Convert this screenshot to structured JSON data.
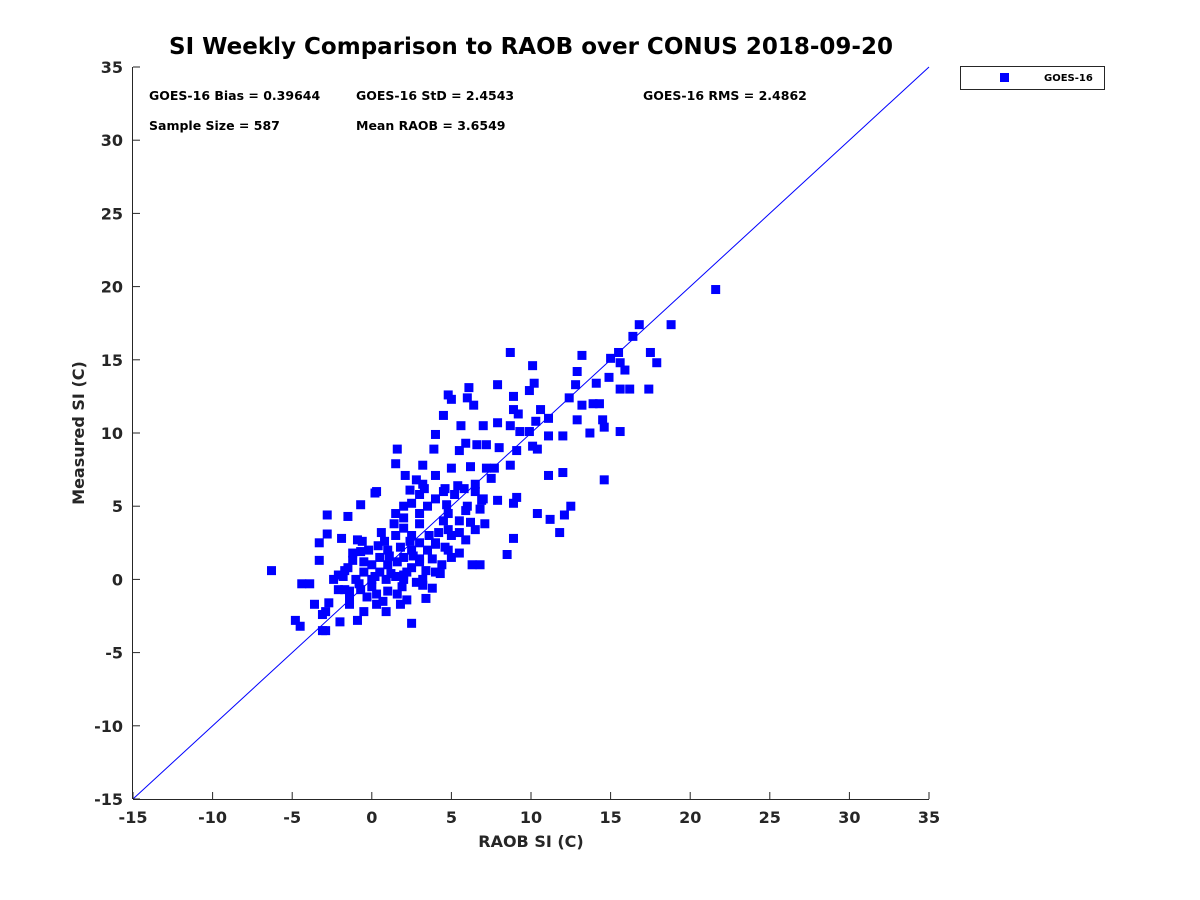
{
  "chart_data": {
    "type": "scatter",
    "title": "SI Weekly Comparison to RAOB over CONUS 2018-09-20",
    "xlabel": "RAOB SI (C)",
    "ylabel": "Measured SI (C)",
    "xlim": [
      -15,
      35
    ],
    "ylim": [
      -15,
      35
    ],
    "xticks": [
      "-15",
      "-10",
      "-5",
      "0",
      "5",
      "10",
      "15",
      "20",
      "25",
      "30",
      "35"
    ],
    "yticks": [
      "-15",
      "-10",
      "-5",
      "0",
      "5",
      "10",
      "15",
      "20",
      "25",
      "30",
      "35"
    ],
    "xtick_values": [
      -15,
      -10,
      -5,
      0,
      5,
      10,
      15,
      20,
      25,
      30,
      35
    ],
    "ytick_values": [
      -15,
      -10,
      -5,
      0,
      5,
      10,
      15,
      20,
      25,
      30,
      35
    ],
    "grid": false,
    "legend": {
      "position": "outside-top-right",
      "entries": [
        "GOES-16"
      ]
    },
    "annotations": {
      "bias": "GOES-16 Bias = 0.39644",
      "std": "GOES-16 StD = 2.4543",
      "rms": "GOES-16 RMS = 2.4862",
      "sample": "Sample Size = 587",
      "mean": "Mean RAOB = 3.6549"
    },
    "reference_line": {
      "name": "1:1 line",
      "from": [
        -15,
        -15
      ],
      "to": [
        35,
        35
      ],
      "color": "#0000ff"
    },
    "series": [
      {
        "name": "GOES-16",
        "color": "#0000ff",
        "marker": "square",
        "points": [
          [
            21.6,
            19.8
          ],
          [
            18.8,
            17.4
          ],
          [
            16.8,
            17.4
          ],
          [
            16.4,
            16.6
          ],
          [
            17.5,
            15.5
          ],
          [
            17.9,
            14.8
          ],
          [
            17.4,
            13.0
          ],
          [
            15.5,
            15.5
          ],
          [
            15.0,
            15.1
          ],
          [
            13.2,
            15.3
          ],
          [
            15.6,
            14.8
          ],
          [
            15.9,
            14.3
          ],
          [
            15.6,
            13.0
          ],
          [
            16.2,
            13.0
          ],
          [
            14.9,
            13.8
          ],
          [
            14.1,
            13.4
          ],
          [
            14.3,
            12.0
          ],
          [
            13.9,
            12.0
          ],
          [
            12.9,
            14.2
          ],
          [
            12.8,
            13.3
          ],
          [
            12.4,
            12.4
          ],
          [
            13.2,
            11.9
          ],
          [
            15.6,
            10.1
          ],
          [
            14.5,
            10.9
          ],
          [
            13.7,
            10.0
          ],
          [
            14.6,
            10.4
          ],
          [
            12.0,
            9.8
          ],
          [
            12.9,
            10.9
          ],
          [
            14.6,
            6.8
          ],
          [
            11.1,
            7.1
          ],
          [
            12.0,
            7.3
          ],
          [
            12.5,
            5.0
          ],
          [
            12.1,
            4.4
          ],
          [
            11.8,
            3.2
          ],
          [
            11.2,
            4.1
          ],
          [
            10.4,
            4.5
          ],
          [
            8.7,
            15.5
          ],
          [
            10.1,
            14.6
          ],
          [
            6.1,
            13.1
          ],
          [
            7.9,
            13.3
          ],
          [
            10.2,
            13.4
          ],
          [
            9.9,
            12.9
          ],
          [
            8.9,
            12.5
          ],
          [
            9.2,
            11.3
          ],
          [
            8.9,
            11.6
          ],
          [
            10.6,
            11.6
          ],
          [
            11.1,
            11.0
          ],
          [
            10.3,
            10.8
          ],
          [
            6.4,
            11.9
          ],
          [
            4.8,
            12.6
          ],
          [
            5.0,
            12.3
          ],
          [
            6.0,
            12.4
          ],
          [
            4.5,
            11.2
          ],
          [
            5.6,
            10.5
          ],
          [
            7.0,
            10.5
          ],
          [
            7.9,
            10.7
          ],
          [
            8.7,
            10.5
          ],
          [
            9.3,
            10.1
          ],
          [
            9.9,
            10.1
          ],
          [
            11.1,
            9.8
          ],
          [
            10.1,
            9.1
          ],
          [
            9.1,
            8.8
          ],
          [
            10.4,
            8.9
          ],
          [
            8.0,
            9.0
          ],
          [
            7.2,
            9.2
          ],
          [
            6.6,
            9.2
          ],
          [
            5.9,
            9.3
          ],
          [
            5.5,
            8.8
          ],
          [
            3.9,
            8.9
          ],
          [
            4.0,
            9.9
          ],
          [
            1.6,
            8.9
          ],
          [
            2.1,
            7.1
          ],
          [
            1.5,
            7.9
          ],
          [
            5.0,
            7.6
          ],
          [
            6.2,
            7.7
          ],
          [
            7.2,
            7.6
          ],
          [
            7.7,
            7.6
          ],
          [
            8.7,
            7.8
          ],
          [
            7.5,
            6.9
          ],
          [
            6.5,
            6.5
          ],
          [
            5.4,
            6.4
          ],
          [
            4.6,
            6.2
          ],
          [
            4.0,
            7.1
          ],
          [
            3.2,
            7.8
          ],
          [
            3.3,
            6.2
          ],
          [
            2.4,
            6.1
          ],
          [
            0.3,
            6.0
          ],
          [
            7.9,
            5.4
          ],
          [
            8.9,
            5.2
          ],
          [
            9.1,
            5.6
          ],
          [
            6.9,
            5.4
          ],
          [
            5.9,
            4.7
          ],
          [
            4.7,
            5.1
          ],
          [
            6.2,
            3.9
          ],
          [
            7.1,
            3.8
          ],
          [
            6.5,
            3.4
          ],
          [
            5.9,
            2.7
          ],
          [
            4.8,
            3.4
          ],
          [
            4.0,
            2.4
          ],
          [
            4.8,
            2.0
          ],
          [
            5.5,
            1.8
          ],
          [
            6.3,
            1.0
          ],
          [
            6.8,
            1.0
          ],
          [
            8.5,
            1.7
          ],
          [
            8.9,
            2.8
          ],
          [
            4.4,
            1.0
          ],
          [
            4.3,
            0.4
          ],
          [
            3.0,
            1.4
          ],
          [
            2.0,
            0.3
          ],
          [
            3.2,
            -0.4
          ],
          [
            3.4,
            -1.3
          ],
          [
            2.5,
            -3.0
          ],
          [
            0.9,
            -2.2
          ],
          [
            1.8,
            -1.7
          ],
          [
            0.3,
            -1.7
          ],
          [
            -0.7,
            -0.7
          ],
          [
            -0.5,
            -2.2
          ],
          [
            -1.4,
            -1.7
          ],
          [
            -0.9,
            -2.8
          ],
          [
            -2.0,
            -2.9
          ],
          [
            -1.4,
            -0.8
          ],
          [
            -2.9,
            -3.5
          ],
          [
            -3.1,
            -3.5
          ],
          [
            -2.9,
            -2.2
          ],
          [
            -3.1,
            -2.4
          ],
          [
            -2.7,
            -1.6
          ],
          [
            -3.6,
            -1.7
          ],
          [
            -4.4,
            -0.3
          ],
          [
            -3.9,
            -0.3
          ],
          [
            -4.8,
            -2.8
          ],
          [
            -4.5,
            -3.2
          ],
          [
            -6.3,
            0.6
          ],
          [
            -3.3,
            1.3
          ],
          [
            -3.3,
            2.5
          ],
          [
            -2.8,
            3.1
          ],
          [
            -2.8,
            4.4
          ],
          [
            -1.5,
            4.3
          ],
          [
            -0.7,
            5.1
          ],
          [
            0.2,
            5.9
          ],
          [
            -1.4,
            -1.4
          ],
          [
            -2.4,
            0.0
          ],
          [
            -2.1,
            0.3
          ],
          [
            -1.7,
            0.6
          ],
          [
            -1.2,
            1.3
          ],
          [
            -0.7,
            1.9
          ],
          [
            -0.9,
            2.7
          ],
          [
            -1.9,
            2.8
          ],
          [
            -2.1,
            -0.7
          ],
          [
            -1.7,
            -0.7
          ],
          [
            0,
            0
          ],
          [
            0.5,
            0.5
          ],
          [
            1,
            1
          ],
          [
            1.5,
            0.2
          ],
          [
            2,
            1.5
          ],
          [
            2.5,
            2
          ],
          [
            3,
            2.5
          ],
          [
            1,
            2
          ],
          [
            0.5,
            1.5
          ],
          [
            -0.5,
            0.5
          ],
          [
            -1,
            0
          ],
          [
            0,
            -0.5
          ],
          [
            1,
            -0.8
          ],
          [
            2,
            0
          ],
          [
            2.5,
            0.8
          ],
          [
            3,
            1.2
          ],
          [
            3.5,
            2
          ],
          [
            4,
            2.5
          ],
          [
            1.5,
            3
          ],
          [
            2,
            3.5
          ],
          [
            2.5,
            3
          ],
          [
            3,
            3.8
          ],
          [
            0,
            1
          ],
          [
            -0.5,
            1.2
          ],
          [
            0.8,
            2.6
          ],
          [
            1.8,
            2.2
          ],
          [
            2.2,
            0.5
          ],
          [
            2.8,
            -0.2
          ],
          [
            1.2,
            0.4
          ],
          [
            0.3,
            -1
          ],
          [
            -0.2,
            2
          ],
          [
            1.6,
            1.2
          ],
          [
            2.6,
            1.6
          ],
          [
            3.4,
            0.6
          ],
          [
            3.8,
            1.4
          ],
          [
            4.2,
            3.2
          ],
          [
            1.4,
            3.8
          ],
          [
            0.6,
            3.2
          ],
          [
            2,
            4.2
          ],
          [
            3,
            4.5
          ],
          [
            3.6,
            3
          ],
          [
            4.5,
            4
          ],
          [
            0.2,
            0.2
          ],
          [
            0.9,
            0.0
          ],
          [
            1.9,
            -0.5
          ],
          [
            -1.5,
            0.8
          ],
          [
            -1.8,
            0.2
          ],
          [
            -0.8,
            -0.3
          ],
          [
            2.4,
            2.6
          ],
          [
            1.1,
            1.6
          ],
          [
            -0.3,
            -1.2
          ],
          [
            0.7,
            -1.5
          ],
          [
            1.6,
            -1.0
          ],
          [
            2.2,
            -1.4
          ],
          [
            3.2,
            0
          ],
          [
            4,
            0.5
          ],
          [
            -1.2,
            1.8
          ],
          [
            -0.6,
            2.6
          ],
          [
            0.4,
            2.3
          ],
          [
            5,
            3
          ],
          [
            5.5,
            4
          ],
          [
            6,
            5
          ],
          [
            4.8,
            4.5
          ],
          [
            5.2,
            5.8
          ],
          [
            4,
            5.5
          ],
          [
            3.5,
            5
          ],
          [
            3,
            5.8
          ],
          [
            2.5,
            5.2
          ],
          [
            2,
            5
          ],
          [
            1.5,
            4.5
          ],
          [
            4.5,
            6
          ],
          [
            5.8,
            6.2
          ],
          [
            3.2,
            6.5
          ],
          [
            2.8,
            6.8
          ],
          [
            6.5,
            6
          ],
          [
            7,
            5.5
          ],
          [
            6.8,
            4.8
          ],
          [
            5.5,
            3.2
          ],
          [
            4.6,
            2.2
          ],
          [
            5,
            1.5
          ],
          [
            3.8,
            -0.6
          ]
        ]
      }
    ]
  }
}
